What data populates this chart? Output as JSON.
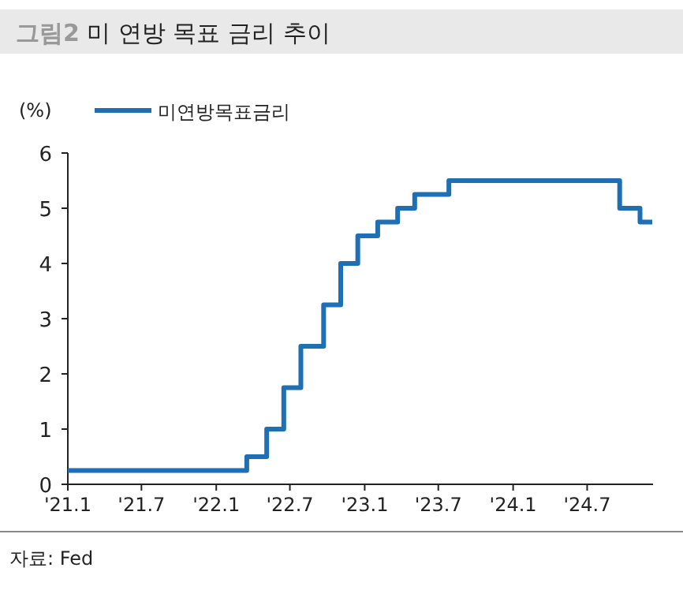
{
  "chart_data": {
    "type": "step",
    "title": "그림2 미 연방 목표 금리 추이",
    "ylabel": "(%)",
    "annotations": [
      "자료: Fed"
    ],
    "x": [
      "2021-01-01",
      "2022-03-17",
      "2022-05-05",
      "2022-06-16",
      "2022-07-28",
      "2022-09-22",
      "2022-11-03",
      "2022-12-15",
      "2023-02-02",
      "2023-03-23",
      "2023-05-04",
      "2023-07-27",
      "2024-09-19",
      "2024-11-08",
      "2024-12-08"
    ],
    "series": [
      {
        "name": "미연방목표금리",
        "color": "#1f6fb4",
        "values": [
          0.25,
          0.5,
          1.0,
          1.75,
          2.5,
          3.25,
          4.0,
          4.5,
          4.75,
          5.0,
          5.25,
          5.5,
          5.0,
          4.75,
          4.75
        ]
      }
    ],
    "xlim": [
      "2021-01-01",
      "2024-12-10"
    ],
    "ylim": [
      0,
      6
    ],
    "yticks": [
      0,
      1,
      2,
      3,
      4,
      5,
      6
    ],
    "xticks": [
      {
        "value": "2021-01-01",
        "label": "'21.1"
      },
      {
        "value": "2021-07-01",
        "label": "'21.7"
      },
      {
        "value": "2022-01-01",
        "label": "'22.1"
      },
      {
        "value": "2022-07-01",
        "label": "'22.7"
      },
      {
        "value": "2023-01-01",
        "label": "'23.1"
      },
      {
        "value": "2023-07-01",
        "label": "'23.7"
      },
      {
        "value": "2024-01-01",
        "label": "'24.1"
      },
      {
        "value": "2024-07-01",
        "label": "'24.7"
      }
    ],
    "legend": "top left",
    "grid": false
  }
}
